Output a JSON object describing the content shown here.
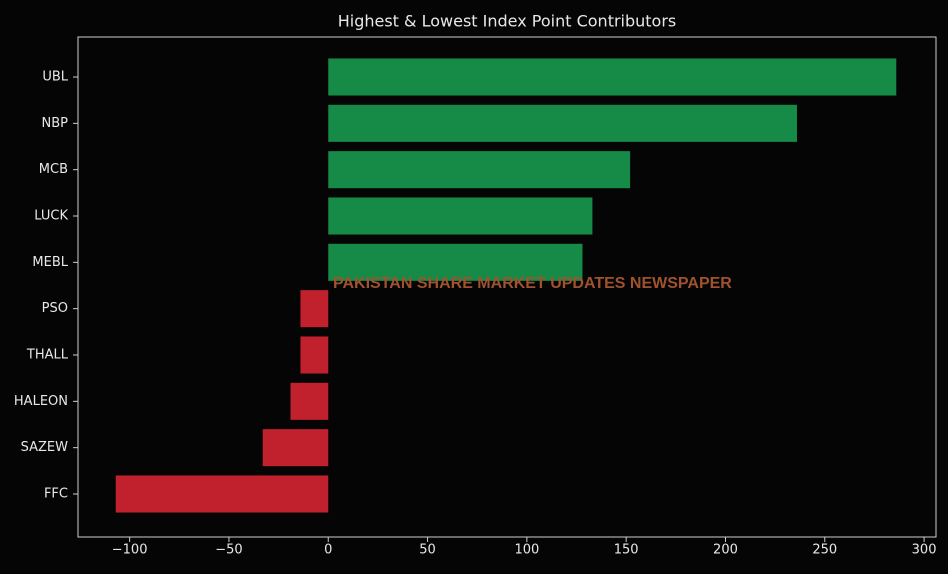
{
  "chart_data": {
    "type": "barh",
    "title": "Highest & Lowest Index Point Contributors",
    "annotation": "PAKISTAN SHARE MARKET UPDATES NEWSPAPER",
    "categories": [
      "UBL",
      "NBP",
      "MCB",
      "LUCK",
      "MEBL",
      "PSO",
      "THALL",
      "HALEON",
      "SAZEW",
      "FFC"
    ],
    "values": [
      286,
      236,
      152,
      133,
      128,
      -14,
      -14,
      -19,
      -33,
      -107
    ],
    "positive_color": "#168a47",
    "negative_color": "#c0212c",
    "xlim": [
      -126,
      306
    ],
    "xticks": [
      {
        "value": -100,
        "label": "−100"
      },
      {
        "value": -50,
        "label": "−50"
      },
      0,
      50,
      100,
      150,
      200,
      250,
      300
    ]
  }
}
